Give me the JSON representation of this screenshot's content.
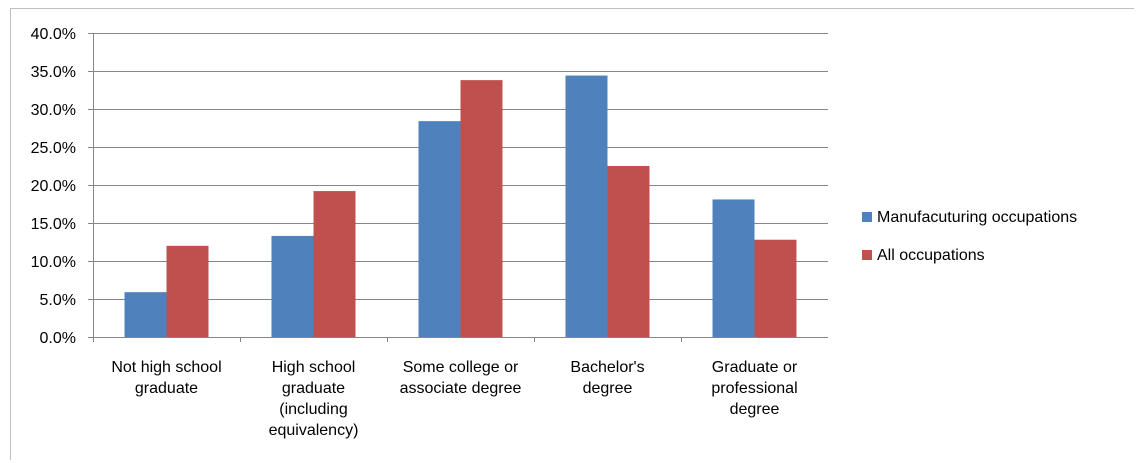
{
  "chart_data": {
    "type": "bar",
    "categories": [
      [
        "Not high school",
        "graduate"
      ],
      [
        "High school",
        "graduate",
        "(including",
        "equivalency)"
      ],
      [
        "Some college or",
        "associate degree"
      ],
      [
        "Bachelor's",
        "degree"
      ],
      [
        "Graduate or",
        "professional",
        "degree"
      ]
    ],
    "series": [
      {
        "name": "Manufacuturing occupations",
        "color": "#4f81bd",
        "values": [
          5.9,
          13.3,
          28.4,
          34.4,
          18.1
        ]
      },
      {
        "name": "All occupations",
        "color": "#c0504d",
        "values": [
          12.0,
          19.2,
          33.8,
          22.5,
          12.8
        ]
      }
    ],
    "y_ticks": [
      "0.0%",
      "5.0%",
      "10.0%",
      "15.0%",
      "20.0%",
      "25.0%",
      "30.0%",
      "35.0%",
      "40.0%"
    ],
    "ylim": [
      0,
      40
    ],
    "grid": true,
    "legend_position": "right",
    "axis_color": "#868686",
    "grid_color": "#868686"
  }
}
